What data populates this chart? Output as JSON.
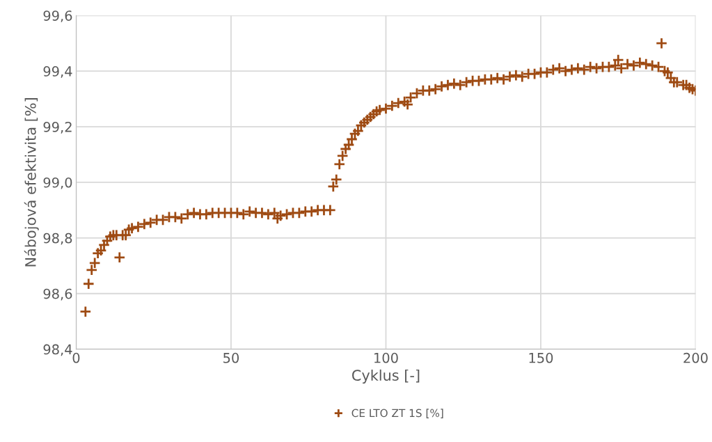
{
  "chart_data": {
    "type": "scatter",
    "xlabel": "Cyklus [-]",
    "ylabel": "Nábojová efektivita [%]",
    "xlim": [
      0,
      200
    ],
    "xticks": [
      0,
      50,
      100,
      150,
      200
    ],
    "ylim": [
      98.4,
      99.6
    ],
    "yticks": [
      {
        "value": 98.4,
        "label": "98,4"
      },
      {
        "value": 98.6,
        "label": "98,6"
      },
      {
        "value": 98.8,
        "label": "98,8"
      },
      {
        "value": 99.0,
        "label": "99,0"
      },
      {
        "value": 99.2,
        "label": "99,2"
      },
      {
        "value": 99.4,
        "label": "99,4"
      },
      {
        "value": 99.6,
        "label": "99,6"
      }
    ],
    "grid": true,
    "legend": "bottom",
    "marker": "cross",
    "series": [
      {
        "name": "CE LTO ZT 1S [%]",
        "color": "#9e4a12",
        "x": [
          3,
          4,
          5,
          6,
          7,
          8,
          9,
          10,
          11,
          12,
          13,
          14,
          15,
          16,
          17,
          18,
          20,
          22,
          24,
          26,
          28,
          30,
          32,
          34,
          36,
          38,
          40,
          42,
          44,
          46,
          48,
          50,
          52,
          54,
          56,
          58,
          60,
          62,
          64,
          65,
          66,
          68,
          70,
          72,
          74,
          76,
          78,
          80,
          82,
          83,
          84,
          85,
          86,
          87,
          88,
          89,
          90,
          91,
          92,
          93,
          94,
          95,
          96,
          97,
          98,
          100,
          102,
          104,
          106,
          107,
          108,
          110,
          112,
          114,
          116,
          118,
          120,
          122,
          124,
          126,
          128,
          130,
          132,
          134,
          136,
          138,
          140,
          142,
          144,
          146,
          148,
          150,
          152,
          154,
          156,
          158,
          160,
          162,
          164,
          166,
          168,
          170,
          172,
          174,
          175,
          176,
          178,
          180,
          182,
          184,
          186,
          188,
          189,
          190,
          191,
          192,
          193,
          194,
          196,
          197,
          198,
          199,
          200
        ],
        "values": [
          98.535,
          98.635,
          98.685,
          98.71,
          98.745,
          98.755,
          98.775,
          98.79,
          98.805,
          98.81,
          98.81,
          98.73,
          98.81,
          98.81,
          98.83,
          98.835,
          98.84,
          98.85,
          98.855,
          98.865,
          98.865,
          98.875,
          98.875,
          98.87,
          98.885,
          98.89,
          98.885,
          98.885,
          98.89,
          98.89,
          98.89,
          98.89,
          98.89,
          98.885,
          98.895,
          98.89,
          98.89,
          98.885,
          98.89,
          98.87,
          98.88,
          98.885,
          98.89,
          98.89,
          98.895,
          98.895,
          98.9,
          98.9,
          98.9,
          98.985,
          99.01,
          99.065,
          99.095,
          99.12,
          99.135,
          99.155,
          99.175,
          99.185,
          99.205,
          99.215,
          99.225,
          99.235,
          99.245,
          99.255,
          99.26,
          99.265,
          99.275,
          99.285,
          99.29,
          99.28,
          99.305,
          99.32,
          99.33,
          99.33,
          99.335,
          99.345,
          99.35,
          99.355,
          99.35,
          99.36,
          99.365,
          99.365,
          99.37,
          99.37,
          99.375,
          99.37,
          99.38,
          99.385,
          99.38,
          99.39,
          99.39,
          99.395,
          99.395,
          99.405,
          99.41,
          99.4,
          99.405,
          99.41,
          99.405,
          99.415,
          99.41,
          99.415,
          99.415,
          99.42,
          99.44,
          99.41,
          99.425,
          99.42,
          99.43,
          99.425,
          99.42,
          99.415,
          99.5,
          99.4,
          99.395,
          99.375,
          99.36,
          99.36,
          99.35,
          99.35,
          99.34,
          99.335,
          99.33
        ]
      }
    ]
  }
}
